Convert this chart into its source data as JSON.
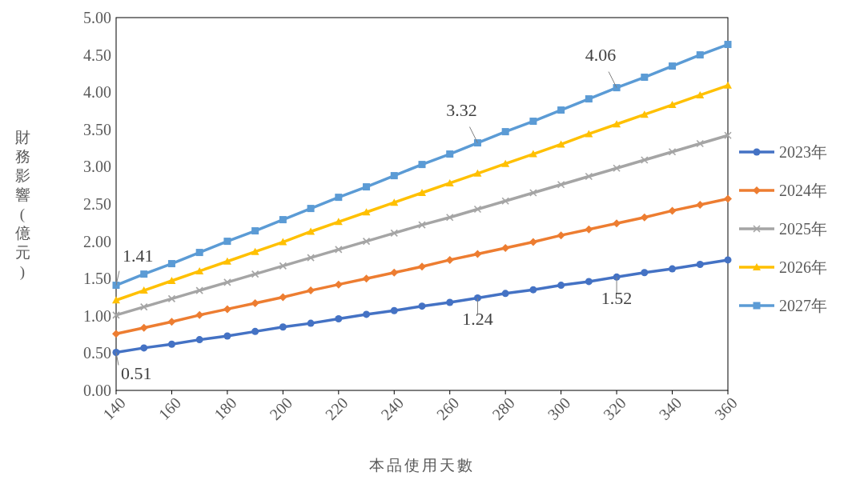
{
  "chart_data": {
    "type": "line",
    "xlabel": "本品使用天數",
    "ylabel": "財務影響(億元)",
    "x": [
      140,
      150,
      160,
      170,
      180,
      190,
      200,
      210,
      220,
      230,
      240,
      250,
      260,
      270,
      280,
      290,
      300,
      310,
      320,
      330,
      340,
      350,
      360
    ],
    "series": [
      {
        "name": "2023年",
        "color": "#4472c4",
        "marker": "circle",
        "values": [
          0.51,
          0.57,
          0.62,
          0.68,
          0.73,
          0.79,
          0.85,
          0.9,
          0.96,
          1.02,
          1.07,
          1.13,
          1.18,
          1.24,
          1.3,
          1.35,
          1.41,
          1.46,
          1.52,
          1.58,
          1.63,
          1.69,
          1.75
        ]
      },
      {
        "name": "2024年",
        "color": "#ed7d31",
        "marker": "diamond",
        "values": [
          0.76,
          0.84,
          0.92,
          1.01,
          1.09,
          1.17,
          1.25,
          1.34,
          1.42,
          1.5,
          1.58,
          1.66,
          1.75,
          1.83,
          1.91,
          1.99,
          2.08,
          2.16,
          2.24,
          2.32,
          2.41,
          2.49,
          2.57
        ]
      },
      {
        "name": "2025年",
        "color": "#a5a5a5",
        "marker": "cross",
        "values": [
          1.01,
          1.12,
          1.23,
          1.34,
          1.45,
          1.56,
          1.67,
          1.78,
          1.89,
          2.0,
          2.11,
          2.22,
          2.32,
          2.43,
          2.54,
          2.65,
          2.76,
          2.87,
          2.98,
          3.09,
          3.2,
          3.31,
          3.42
        ]
      },
      {
        "name": "2026年",
        "color": "#ffc000",
        "marker": "triangle",
        "values": [
          1.21,
          1.34,
          1.47,
          1.6,
          1.73,
          1.86,
          1.99,
          2.13,
          2.26,
          2.39,
          2.52,
          2.65,
          2.78,
          2.91,
          3.04,
          3.17,
          3.3,
          3.44,
          3.57,
          3.7,
          3.83,
          3.96,
          4.09
        ]
      },
      {
        "name": "2027年",
        "color": "#5b9bd5",
        "marker": "square",
        "values": [
          1.41,
          1.56,
          1.7,
          1.85,
          2.0,
          2.14,
          2.29,
          2.44,
          2.59,
          2.73,
          2.88,
          3.03,
          3.17,
          3.32,
          3.47,
          3.61,
          3.76,
          3.91,
          4.06,
          4.2,
          4.35,
          4.5,
          4.64
        ]
      }
    ],
    "xlim": [
      140,
      360
    ],
    "xticks": [
      140,
      160,
      180,
      200,
      220,
      240,
      260,
      280,
      300,
      320,
      340,
      360
    ],
    "ylim": [
      0,
      5
    ],
    "yticks": [
      {
        "value": 0,
        "label": "0.00"
      },
      {
        "value": 0.5,
        "label": "0.50"
      },
      {
        "value": 1,
        "label": "1.00"
      },
      {
        "value": 1.5,
        "label": "1.50"
      },
      {
        "value": 2,
        "label": "2.00"
      },
      {
        "value": 2.5,
        "label": "2.50"
      },
      {
        "value": 3,
        "label": "3.00"
      },
      {
        "value": 3.5,
        "label": "3.50"
      },
      {
        "value": 4,
        "label": "4.00"
      },
      {
        "value": 4.5,
        "label": "4.50"
      },
      {
        "value": 5,
        "label": "5.00"
      }
    ],
    "grid": false,
    "legend": "right",
    "annotations": [
      {
        "text": "1.41",
        "x": 140,
        "y": 1.41
      },
      {
        "text": "0.51",
        "x": 140,
        "y": 0.51
      },
      {
        "text": "1.24",
        "x": 270,
        "y": 1.24
      },
      {
        "text": "1.52",
        "x": 320,
        "y": 1.52
      },
      {
        "text": "3.32",
        "x": 270,
        "y": 3.32
      },
      {
        "text": "4.06",
        "x": 320,
        "y": 4.06
      }
    ]
  }
}
